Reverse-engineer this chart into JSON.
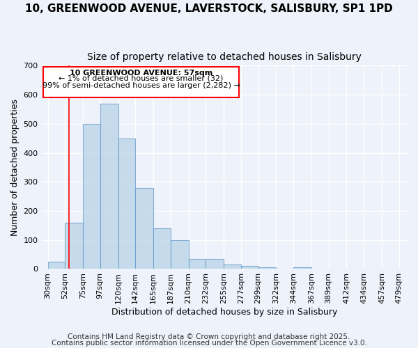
{
  "title": "10, GREENWOOD AVENUE, LAVERSTOCK, SALISBURY, SP1 1PD",
  "subtitle": "Size of property relative to detached houses in Salisbury",
  "xlabel": "Distribution of detached houses by size in Salisbury",
  "ylabel": "Number of detached properties",
  "bar_left_edges": [
    30,
    52,
    75,
    97,
    120,
    142,
    165,
    187,
    210,
    232,
    255,
    277,
    299,
    322,
    344,
    367,
    389,
    412,
    434,
    457
  ],
  "bar_widths": [
    22,
    23,
    22,
    23,
    22,
    23,
    22,
    23,
    22,
    23,
    22,
    22,
    23,
    22,
    23,
    22,
    23,
    22,
    23,
    22
  ],
  "bar_heights": [
    25,
    160,
    500,
    570,
    450,
    280,
    140,
    100,
    35,
    35,
    15,
    10,
    5,
    2,
    5,
    2,
    2,
    1,
    1,
    1
  ],
  "bar_facecolor": "#b8d4e8",
  "bar_edgecolor": "#6699cc",
  "bar_alpha": 0.75,
  "tick_labels": [
    "30sqm",
    "52sqm",
    "75sqm",
    "97sqm",
    "120sqm",
    "142sqm",
    "165sqm",
    "187sqm",
    "210sqm",
    "232sqm",
    "255sqm",
    "277sqm",
    "299sqm",
    "322sqm",
    "344sqm",
    "367sqm",
    "389sqm",
    "412sqm",
    "434sqm",
    "457sqm",
    "479sqm"
  ],
  "tick_positions": [
    30,
    52,
    75,
    97,
    120,
    142,
    165,
    187,
    210,
    232,
    255,
    277,
    299,
    322,
    344,
    367,
    389,
    412,
    434,
    457,
    479
  ],
  "ylim": [
    0,
    700
  ],
  "xlim": [
    22,
    490
  ],
  "yticks": [
    0,
    100,
    200,
    300,
    400,
    500,
    600,
    700
  ],
  "redline_x": 57,
  "annotation_title": "10 GREENWOOD AVENUE: 57sqm",
  "annotation_line1": "← 1% of detached houses are smaller (32)",
  "annotation_line2": "99% of semi-detached houses are larger (2,282) →",
  "footer1": "Contains HM Land Registry data © Crown copyright and database right 2025.",
  "footer2": "Contains public sector information licensed under the Open Government Licence v3.0.",
  "background_color": "#eef2fa",
  "grid_color": "#ffffff",
  "title_fontsize": 11,
  "subtitle_fontsize": 10,
  "xlabel_fontsize": 9,
  "ylabel_fontsize": 9,
  "tick_fontsize": 8,
  "footer_fontsize": 7.5
}
